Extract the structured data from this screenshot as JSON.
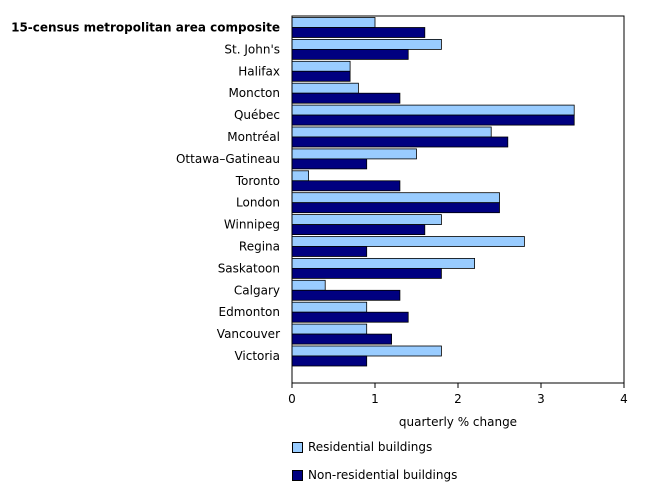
{
  "chart_data": {
    "type": "bar",
    "orientation": "horizontal",
    "categories": [
      "15-census metropolitan area composite",
      "St. John's",
      "Halifax",
      "Moncton",
      "Québec",
      "Montréal",
      "Ottawa–Gatineau",
      "Toronto",
      "London",
      "Winnipeg",
      "Regina",
      "Saskatoon",
      "Calgary",
      "Edmonton",
      "Vancouver",
      "Victoria"
    ],
    "series": [
      {
        "name": "Residential buildings",
        "color": "#99ccff",
        "values": [
          1.0,
          1.8,
          0.7,
          0.8,
          3.4,
          2.4,
          1.5,
          0.2,
          2.5,
          1.8,
          2.8,
          2.2,
          0.4,
          0.9,
          0.9,
          1.8
        ]
      },
      {
        "name": "Non-residential buildings",
        "color": "#000080",
        "values": [
          1.6,
          1.4,
          0.7,
          1.3,
          3.4,
          2.6,
          0.9,
          1.3,
          2.5,
          1.6,
          0.9,
          1.8,
          1.3,
          1.4,
          1.2,
          0.9
        ]
      }
    ],
    "xlabel": "quarterly % change",
    "xlim": [
      0,
      4
    ],
    "xticks": [
      "0",
      "1",
      "2",
      "3",
      "4"
    ],
    "bold_category_index": 0,
    "legend_position": "bottom"
  }
}
